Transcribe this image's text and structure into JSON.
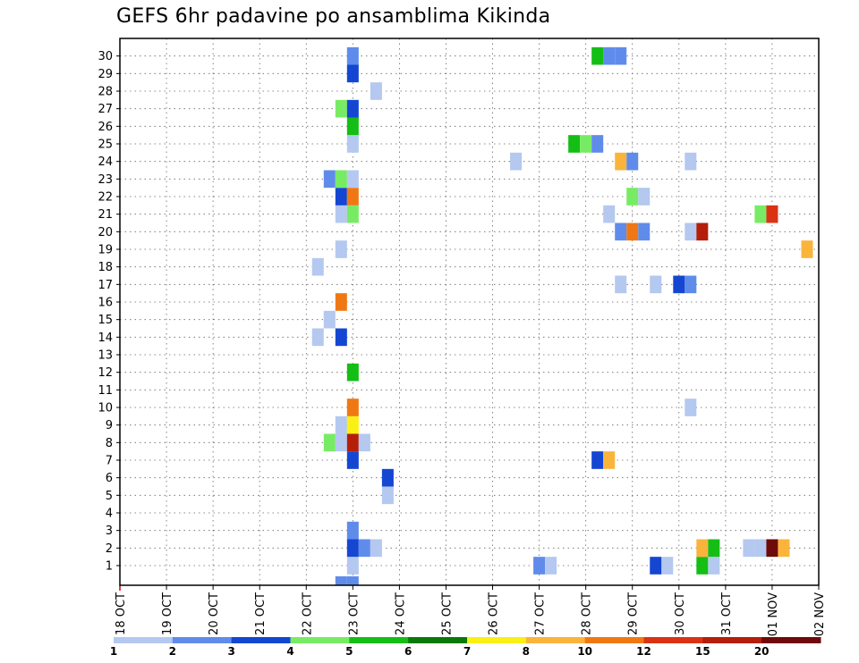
{
  "chart_data": {
    "type": "heatmap",
    "title": "GEFS 6hr padavine po ansamblima Kikinda",
    "xlabel": "",
    "ylabel": "",
    "x_ticks": [
      "18 OCT",
      "19 OCT",
      "20 OCT",
      "21 OCT",
      "22 OCT",
      "23 OCT",
      "24 OCT",
      "25 OCT",
      "26 OCT",
      "27 OCT",
      "28 OCT",
      "29 OCT",
      "30 OCT",
      "31 OCT",
      "01 NOV",
      "02 NOV"
    ],
    "y_ticks": [
      "1",
      "2",
      "3",
      "4",
      "5",
      "6",
      "7",
      "8",
      "9",
      "10",
      "11",
      "12",
      "13",
      "14",
      "15",
      "16",
      "17",
      "18",
      "19",
      "20",
      "21",
      "22",
      "23",
      "24",
      "25",
      "26",
      "27",
      "28",
      "29",
      "30"
    ],
    "x_step": "6hr",
    "grid": true,
    "legend": {
      "placement": "bottom",
      "labels": [
        "1",
        "2",
        "3",
        "4",
        "5",
        "6",
        "7",
        "8",
        "10",
        "12",
        "15",
        "20"
      ],
      "colors": [
        "#b4c8f0",
        "#5f8ceb",
        "#1446d2",
        "#78eb64",
        "#14be14",
        "#0a780a",
        "#faf014",
        "#fab43c",
        "#f07814",
        "#dc3214",
        "#b41e0a",
        "#6e0a0a"
      ]
    },
    "cells": [
      {
        "day": "22 OCT",
        "h": 18,
        "member": 0,
        "color": "#5f8ceb"
      },
      {
        "day": "23 OCT",
        "h": 0,
        "member": 0,
        "color": "#5f8ceb"
      },
      {
        "day": "23 OCT",
        "h": 0,
        "member": 1,
        "color": "#b4c8f0"
      },
      {
        "day": "27 OCT",
        "h": 0,
        "member": 1,
        "color": "#5f8ceb"
      },
      {
        "day": "27 OCT",
        "h": 6,
        "member": 1,
        "color": "#b4c8f0"
      },
      {
        "day": "29 OCT",
        "h": 12,
        "member": 1,
        "color": "#1446d2"
      },
      {
        "day": "29 OCT",
        "h": 18,
        "member": 1,
        "color": "#b4c8f0"
      },
      {
        "day": "30 OCT",
        "h": 12,
        "member": 1,
        "color": "#14be14"
      },
      {
        "day": "30 OCT",
        "h": 18,
        "member": 1,
        "color": "#b4c8f0"
      },
      {
        "day": "23 OCT",
        "h": 0,
        "member": 2,
        "color": "#1446d2"
      },
      {
        "day": "23 OCT",
        "h": 6,
        "member": 2,
        "color": "#5f8ceb"
      },
      {
        "day": "23 OCT",
        "h": 12,
        "member": 2,
        "color": "#b4c8f0"
      },
      {
        "day": "30 OCT",
        "h": 12,
        "member": 2,
        "color": "#fab43c"
      },
      {
        "day": "30 OCT",
        "h": 18,
        "member": 2,
        "color": "#14be14"
      },
      {
        "day": "31 OCT",
        "h": 12,
        "member": 2,
        "color": "#b4c8f0"
      },
      {
        "day": "31 OCT",
        "h": 18,
        "member": 2,
        "color": "#b4c8f0"
      },
      {
        "day": "01 NOV",
        "h": 0,
        "member": 2,
        "color": "#6e0a0a"
      },
      {
        "day": "01 NOV",
        "h": 6,
        "member": 2,
        "color": "#fab43c"
      },
      {
        "day": "23 OCT",
        "h": 0,
        "member": 3,
        "color": "#5f8ceb"
      },
      {
        "day": "23 OCT",
        "h": 18,
        "member": 5,
        "color": "#b4c8f0"
      },
      {
        "day": "23 OCT",
        "h": 18,
        "member": 6,
        "color": "#1446d2"
      },
      {
        "day": "23 OCT",
        "h": 0,
        "member": 7,
        "color": "#1446d2"
      },
      {
        "day": "28 OCT",
        "h": 6,
        "member": 7,
        "color": "#1446d2"
      },
      {
        "day": "28 OCT",
        "h": 12,
        "member": 7,
        "color": "#fab43c"
      },
      {
        "day": "22 OCT",
        "h": 12,
        "member": 8,
        "color": "#78eb64"
      },
      {
        "day": "22 OCT",
        "h": 18,
        "member": 8,
        "color": "#b4c8f0"
      },
      {
        "day": "23 OCT",
        "h": 0,
        "member": 8,
        "color": "#b41e0a"
      },
      {
        "day": "23 OCT",
        "h": 6,
        "member": 8,
        "color": "#b4c8f0"
      },
      {
        "day": "22 OCT",
        "h": 18,
        "member": 9,
        "color": "#b4c8f0"
      },
      {
        "day": "23 OCT",
        "h": 0,
        "member": 9,
        "color": "#faf014"
      },
      {
        "day": "23 OCT",
        "h": 0,
        "member": 10,
        "color": "#f07814"
      },
      {
        "day": "30 OCT",
        "h": 6,
        "member": 10,
        "color": "#b4c8f0"
      },
      {
        "day": "23 OCT",
        "h": 0,
        "member": 12,
        "color": "#14be14"
      },
      {
        "day": "22 OCT",
        "h": 6,
        "member": 14,
        "color": "#b4c8f0"
      },
      {
        "day": "22 OCT",
        "h": 18,
        "member": 14,
        "color": "#1446d2"
      },
      {
        "day": "22 OCT",
        "h": 12,
        "member": 15,
        "color": "#b4c8f0"
      },
      {
        "day": "22 OCT",
        "h": 18,
        "member": 16,
        "color": "#f07814"
      },
      {
        "day": "28 OCT",
        "h": 18,
        "member": 17,
        "color": "#b4c8f0"
      },
      {
        "day": "29 OCT",
        "h": 12,
        "member": 17,
        "color": "#b4c8f0"
      },
      {
        "day": "30 OCT",
        "h": 0,
        "member": 17,
        "color": "#1446d2"
      },
      {
        "day": "30 OCT",
        "h": 6,
        "member": 17,
        "color": "#5f8ceb"
      },
      {
        "day": "22 OCT",
        "h": 6,
        "member": 18,
        "color": "#b4c8f0"
      },
      {
        "day": "01 NOV",
        "h": 18,
        "member": 19,
        "color": "#fab43c"
      },
      {
        "day": "22 OCT",
        "h": 18,
        "member": 19,
        "color": "#b4c8f0"
      },
      {
        "day": "28 OCT",
        "h": 18,
        "member": 20,
        "color": "#5f8ceb"
      },
      {
        "day": "29 OCT",
        "h": 0,
        "member": 20,
        "color": "#f07814"
      },
      {
        "day": "29 OCT",
        "h": 6,
        "member": 20,
        "color": "#5f8ceb"
      },
      {
        "day": "30 OCT",
        "h": 6,
        "member": 20,
        "color": "#b4c8f0"
      },
      {
        "day": "30 OCT",
        "h": 12,
        "member": 20,
        "color": "#b41e0a"
      },
      {
        "day": "22 OCT",
        "h": 18,
        "member": 21,
        "color": "#b4c8f0"
      },
      {
        "day": "23 OCT",
        "h": 0,
        "member": 21,
        "color": "#78eb64"
      },
      {
        "day": "28 OCT",
        "h": 12,
        "member": 21,
        "color": "#b4c8f0"
      },
      {
        "day": "31 OCT",
        "h": 18,
        "member": 21,
        "color": "#78eb64"
      },
      {
        "day": "01 NOV",
        "h": 0,
        "member": 21,
        "color": "#dc3214"
      },
      {
        "day": "22 OCT",
        "h": 18,
        "member": 22,
        "color": "#1446d2"
      },
      {
        "day": "23 OCT",
        "h": 0,
        "member": 22,
        "color": "#f07814"
      },
      {
        "day": "29 OCT",
        "h": 0,
        "member": 22,
        "color": "#78eb64"
      },
      {
        "day": "29 OCT",
        "h": 6,
        "member": 22,
        "color": "#b4c8f0"
      },
      {
        "day": "22 OCT",
        "h": 12,
        "member": 23,
        "color": "#5f8ceb"
      },
      {
        "day": "22 OCT",
        "h": 18,
        "member": 23,
        "color": "#78eb64"
      },
      {
        "day": "23 OCT",
        "h": 0,
        "member": 23,
        "color": "#b4c8f0"
      },
      {
        "day": "26 OCT",
        "h": 12,
        "member": 24,
        "color": "#b4c8f0"
      },
      {
        "day": "28 OCT",
        "h": 18,
        "member": 24,
        "color": "#fab43c"
      },
      {
        "day": "29 OCT",
        "h": 0,
        "member": 24,
        "color": "#5f8ceb"
      },
      {
        "day": "30 OCT",
        "h": 6,
        "member": 24,
        "color": "#b4c8f0"
      },
      {
        "day": "23 OCT",
        "h": 0,
        "member": 25,
        "color": "#b4c8f0"
      },
      {
        "day": "27 OCT",
        "h": 18,
        "member": 25,
        "color": "#14be14"
      },
      {
        "day": "28 OCT",
        "h": 0,
        "member": 25,
        "color": "#78eb64"
      },
      {
        "day": "28 OCT",
        "h": 6,
        "member": 25,
        "color": "#5f8ceb"
      },
      {
        "day": "23 OCT",
        "h": 0,
        "member": 26,
        "color": "#14be14"
      },
      {
        "day": "22 OCT",
        "h": 18,
        "member": 27,
        "color": "#78eb64"
      },
      {
        "day": "23 OCT",
        "h": 0,
        "member": 27,
        "color": "#1446d2"
      },
      {
        "day": "23 OCT",
        "h": 12,
        "member": 28,
        "color": "#b4c8f0"
      },
      {
        "day": "23 OCT",
        "h": 0,
        "member": 29,
        "color": "#1446d2"
      },
      {
        "day": "23 OCT",
        "h": 0,
        "member": 30,
        "color": "#5f8ceb"
      },
      {
        "day": "28 OCT",
        "h": 6,
        "member": 30,
        "color": "#14be14"
      },
      {
        "day": "28 OCT",
        "h": 12,
        "member": 30,
        "color": "#5f8ceb"
      },
      {
        "day": "28 OCT",
        "h": 18,
        "member": 30,
        "color": "#5f8ceb"
      }
    ]
  }
}
